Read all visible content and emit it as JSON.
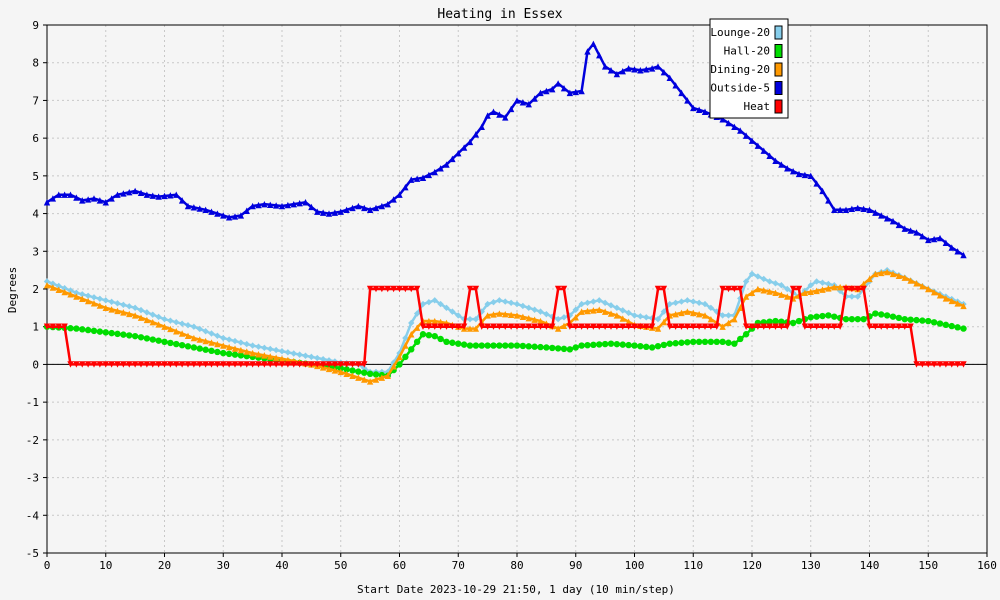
{
  "chart_data": {
    "type": "line",
    "title": "Heating in Essex",
    "xlabel": "Start Date 2023-10-29 21:50, 1 day (10 min/step)",
    "ylabel": "Degrees",
    "xlim": [
      0,
      160
    ],
    "ylim": [
      -5,
      9
    ],
    "xticks": [
      0,
      10,
      20,
      30,
      40,
      50,
      60,
      70,
      80,
      90,
      100,
      110,
      120,
      130,
      140,
      150,
      160
    ],
    "yticks": [
      -5,
      -4,
      -3,
      -2,
      -1,
      0,
      1,
      2,
      3,
      4,
      5,
      6,
      7,
      8,
      9
    ],
    "grid": true,
    "legend_position": "top-right",
    "x_count": 157,
    "series": [
      {
        "name": "Lounge-20",
        "color": "#87ceeb",
        "marker": "diamond",
        "anchors": [
          [
            0,
            2.2
          ],
          [
            5,
            1.9
          ],
          [
            10,
            1.7
          ],
          [
            15,
            1.5
          ],
          [
            20,
            1.2
          ],
          [
            25,
            1.0
          ],
          [
            30,
            0.7
          ],
          [
            35,
            0.5
          ],
          [
            40,
            0.35
          ],
          [
            45,
            0.2
          ],
          [
            50,
            0.05
          ],
          [
            53,
            0.0
          ],
          [
            55,
            -0.2
          ],
          [
            58,
            -0.2
          ],
          [
            60,
            0.3
          ],
          [
            62,
            1.1
          ],
          [
            64,
            1.6
          ],
          [
            66,
            1.7
          ],
          [
            68,
            1.5
          ],
          [
            71,
            1.2
          ],
          [
            73,
            1.2
          ],
          [
            75,
            1.6
          ],
          [
            77,
            1.7
          ],
          [
            80,
            1.6
          ],
          [
            84,
            1.4
          ],
          [
            87,
            1.2
          ],
          [
            89,
            1.3
          ],
          [
            91,
            1.6
          ],
          [
            94,
            1.7
          ],
          [
            97,
            1.5
          ],
          [
            100,
            1.3
          ],
          [
            104,
            1.2
          ],
          [
            106,
            1.6
          ],
          [
            109,
            1.7
          ],
          [
            112,
            1.6
          ],
          [
            115,
            1.3
          ],
          [
            117,
            1.3
          ],
          [
            119,
            2.2
          ],
          [
            120,
            2.4
          ],
          [
            123,
            2.2
          ],
          [
            125,
            2.1
          ],
          [
            128,
            1.8
          ],
          [
            130,
            2.1
          ],
          [
            131,
            2.2
          ],
          [
            134,
            2.1
          ],
          [
            136,
            1.8
          ],
          [
            138,
            1.8
          ],
          [
            141,
            2.4
          ],
          [
            143,
            2.5
          ],
          [
            146,
            2.3
          ],
          [
            150,
            2.0
          ],
          [
            153,
            1.8
          ],
          [
            156,
            1.6
          ]
        ]
      },
      {
        "name": "Hall-20",
        "color": "#00dd00",
        "marker": "circle",
        "anchors": [
          [
            0,
            1.0
          ],
          [
            5,
            0.95
          ],
          [
            10,
            0.85
          ],
          [
            15,
            0.75
          ],
          [
            20,
            0.6
          ],
          [
            25,
            0.45
          ],
          [
            30,
            0.3
          ],
          [
            35,
            0.2
          ],
          [
            40,
            0.1
          ],
          [
            45,
            0.0
          ],
          [
            50,
            -0.1
          ],
          [
            55,
            -0.25
          ],
          [
            58,
            -0.3
          ],
          [
            60,
            0.0
          ],
          [
            62,
            0.4
          ],
          [
            64,
            0.8
          ],
          [
            66,
            0.75
          ],
          [
            68,
            0.6
          ],
          [
            72,
            0.5
          ],
          [
            80,
            0.5
          ],
          [
            85,
            0.45
          ],
          [
            89,
            0.4
          ],
          [
            91,
            0.5
          ],
          [
            96,
            0.55
          ],
          [
            100,
            0.5
          ],
          [
            103,
            0.45
          ],
          [
            106,
            0.55
          ],
          [
            110,
            0.6
          ],
          [
            115,
            0.6
          ],
          [
            117,
            0.55
          ],
          [
            119,
            0.8
          ],
          [
            121,
            1.1
          ],
          [
            124,
            1.15
          ],
          [
            127,
            1.1
          ],
          [
            130,
            1.25
          ],
          [
            133,
            1.3
          ],
          [
            136,
            1.2
          ],
          [
            139,
            1.2
          ],
          [
            141,
            1.35
          ],
          [
            143,
            1.3
          ],
          [
            146,
            1.2
          ],
          [
            150,
            1.15
          ],
          [
            153,
            1.05
          ],
          [
            156,
            0.95
          ]
        ]
      },
      {
        "name": "Dining-20",
        "color": "#ff9900",
        "marker": "triangle",
        "anchors": [
          [
            0,
            2.1
          ],
          [
            5,
            1.8
          ],
          [
            10,
            1.5
          ],
          [
            15,
            1.3
          ],
          [
            20,
            1.0
          ],
          [
            25,
            0.7
          ],
          [
            30,
            0.5
          ],
          [
            35,
            0.3
          ],
          [
            40,
            0.15
          ],
          [
            45,
            0.0
          ],
          [
            50,
            -0.2
          ],
          [
            53,
            -0.35
          ],
          [
            55,
            -0.45
          ],
          [
            58,
            -0.3
          ],
          [
            60,
            0.2
          ],
          [
            62,
            0.8
          ],
          [
            64,
            1.15
          ],
          [
            66,
            1.15
          ],
          [
            68,
            1.1
          ],
          [
            71,
            0.95
          ],
          [
            73,
            0.95
          ],
          [
            75,
            1.3
          ],
          [
            77,
            1.35
          ],
          [
            80,
            1.3
          ],
          [
            84,
            1.15
          ],
          [
            87,
            0.95
          ],
          [
            89,
            1.1
          ],
          [
            91,
            1.4
          ],
          [
            94,
            1.45
          ],
          [
            97,
            1.3
          ],
          [
            100,
            1.05
          ],
          [
            104,
            0.95
          ],
          [
            106,
            1.3
          ],
          [
            109,
            1.4
          ],
          [
            112,
            1.3
          ],
          [
            115,
            1.0
          ],
          [
            117,
            1.2
          ],
          [
            119,
            1.8
          ],
          [
            121,
            2.0
          ],
          [
            124,
            1.9
          ],
          [
            127,
            1.75
          ],
          [
            129,
            1.9
          ],
          [
            131,
            1.95
          ],
          [
            134,
            2.05
          ],
          [
            136,
            2.05
          ],
          [
            138,
            2.0
          ],
          [
            141,
            2.4
          ],
          [
            143,
            2.45
          ],
          [
            146,
            2.3
          ],
          [
            150,
            2.0
          ],
          [
            153,
            1.75
          ],
          [
            156,
            1.55
          ]
        ]
      },
      {
        "name": "Outside-5",
        "color": "#0000dd",
        "marker": "triangle",
        "anchors": [
          [
            0,
            4.3
          ],
          [
            2,
            4.5
          ],
          [
            4,
            4.5
          ],
          [
            6,
            4.35
          ],
          [
            8,
            4.4
          ],
          [
            10,
            4.3
          ],
          [
            12,
            4.5
          ],
          [
            15,
            4.6
          ],
          [
            17,
            4.5
          ],
          [
            19,
            4.45
          ],
          [
            22,
            4.5
          ],
          [
            24,
            4.2
          ],
          [
            27,
            4.1
          ],
          [
            29,
            4.0
          ],
          [
            31,
            3.9
          ],
          [
            33,
            3.95
          ],
          [
            35,
            4.2
          ],
          [
            37,
            4.25
          ],
          [
            40,
            4.2
          ],
          [
            42,
            4.25
          ],
          [
            44,
            4.3
          ],
          [
            46,
            4.05
          ],
          [
            48,
            4.0
          ],
          [
            50,
            4.05
          ],
          [
            53,
            4.2
          ],
          [
            55,
            4.1
          ],
          [
            58,
            4.25
          ],
          [
            60,
            4.5
          ],
          [
            62,
            4.9
          ],
          [
            64,
            4.95
          ],
          [
            66,
            5.1
          ],
          [
            68,
            5.3
          ],
          [
            70,
            5.6
          ],
          [
            72,
            5.9
          ],
          [
            74,
            6.3
          ],
          [
            75,
            6.6
          ],
          [
            76,
            6.7
          ],
          [
            78,
            6.55
          ],
          [
            80,
            7.0
          ],
          [
            82,
            6.9
          ],
          [
            84,
            7.2
          ],
          [
            86,
            7.3
          ],
          [
            87,
            7.45
          ],
          [
            89,
            7.2
          ],
          [
            91,
            7.25
          ],
          [
            92,
            8.3
          ],
          [
            93,
            8.5
          ],
          [
            95,
            7.9
          ],
          [
            97,
            7.7
          ],
          [
            99,
            7.85
          ],
          [
            101,
            7.8
          ],
          [
            103,
            7.85
          ],
          [
            104,
            7.9
          ],
          [
            106,
            7.6
          ],
          [
            108,
            7.2
          ],
          [
            110,
            6.8
          ],
          [
            112,
            6.7
          ],
          [
            115,
            6.5
          ],
          [
            118,
            6.2
          ],
          [
            121,
            5.8
          ],
          [
            124,
            5.4
          ],
          [
            126,
            5.2
          ],
          [
            128,
            5.05
          ],
          [
            130,
            5.0
          ],
          [
            132,
            4.6
          ],
          [
            134,
            4.1
          ],
          [
            136,
            4.1
          ],
          [
            138,
            4.15
          ],
          [
            140,
            4.1
          ],
          [
            142,
            3.95
          ],
          [
            144,
            3.8
          ],
          [
            146,
            3.6
          ],
          [
            148,
            3.5
          ],
          [
            150,
            3.3
          ],
          [
            152,
            3.35
          ],
          [
            154,
            3.1
          ],
          [
            156,
            2.9
          ]
        ]
      },
      {
        "name": "Heat",
        "color": "#ff0000",
        "marker": "inverted-triangle",
        "anchors": [
          [
            0,
            1
          ],
          [
            3,
            1
          ],
          [
            4,
            0
          ],
          [
            54,
            0
          ],
          [
            55,
            2
          ],
          [
            63,
            2
          ],
          [
            64,
            1
          ],
          [
            71,
            1
          ],
          [
            72,
            2
          ],
          [
            73,
            2
          ],
          [
            74,
            1
          ],
          [
            86,
            1
          ],
          [
            87,
            2
          ],
          [
            88,
            2
          ],
          [
            89,
            1
          ],
          [
            103,
            1
          ],
          [
            104,
            2
          ],
          [
            105,
            2
          ],
          [
            106,
            1
          ],
          [
            114,
            1
          ],
          [
            115,
            2
          ],
          [
            118,
            2
          ],
          [
            119,
            1
          ],
          [
            126,
            1
          ],
          [
            127,
            2
          ],
          [
            128,
            2
          ],
          [
            129,
            1
          ],
          [
            135,
            1
          ],
          [
            136,
            2
          ],
          [
            139,
            2
          ],
          [
            140,
            1
          ],
          [
            147,
            1
          ],
          [
            148,
            0
          ],
          [
            156,
            0
          ]
        ]
      }
    ]
  }
}
